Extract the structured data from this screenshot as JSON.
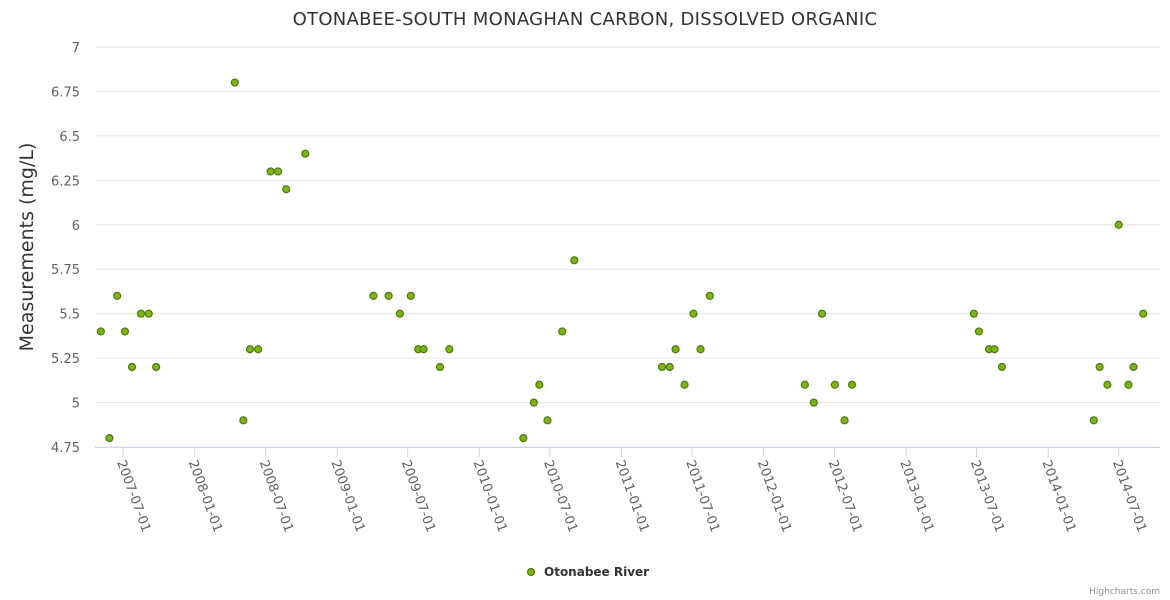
{
  "chart_data": {
    "type": "scatter",
    "title": "OTONABEE-SOUTH MONAGHAN CARBON, DISSOLVED ORGANIC",
    "ylabel": "Measurements (mg/L)",
    "xlabel": "",
    "ylim": [
      4.75,
      7
    ],
    "y_ticks": [
      "4.75",
      "5",
      "5.25",
      "5.5",
      "5.75",
      "6",
      "6.25",
      "6.5",
      "6.75",
      "7"
    ],
    "x_range": [
      "2007-04-20",
      "2014-10-15"
    ],
    "x_ticks": [
      "2007-07-01",
      "2008-01-01",
      "2008-07-01",
      "2009-01-01",
      "2009-07-01",
      "2010-01-01",
      "2010-07-01",
      "2011-01-01",
      "2011-07-01",
      "2012-01-01",
      "2012-07-01",
      "2013-01-01",
      "2013-07-01",
      "2014-01-01",
      "2014-07-01"
    ],
    "grid": true,
    "legend_position": "bottom-center",
    "series": [
      {
        "name": "Otonabee River",
        "color": "#7cb518",
        "border_color": "#4e7a0b",
        "points": [
          {
            "x": "2007-05-05",
            "y": 5.4
          },
          {
            "x": "2007-05-27",
            "y": 4.8
          },
          {
            "x": "2007-06-16",
            "y": 5.6
          },
          {
            "x": "2007-07-06",
            "y": 5.4
          },
          {
            "x": "2007-07-24",
            "y": 5.2
          },
          {
            "x": "2007-08-16",
            "y": 5.5
          },
          {
            "x": "2007-09-05",
            "y": 5.5
          },
          {
            "x": "2007-09-24",
            "y": 5.2
          },
          {
            "x": "2008-04-13",
            "y": 6.8
          },
          {
            "x": "2008-05-05",
            "y": 4.9
          },
          {
            "x": "2008-05-22",
            "y": 5.3
          },
          {
            "x": "2008-06-12",
            "y": 5.3
          },
          {
            "x": "2008-07-14",
            "y": 6.3
          },
          {
            "x": "2008-08-02",
            "y": 6.3
          },
          {
            "x": "2008-08-23",
            "y": 6.2
          },
          {
            "x": "2008-10-11",
            "y": 6.4
          },
          {
            "x": "2009-04-04",
            "y": 5.6
          },
          {
            "x": "2009-05-13",
            "y": 5.6
          },
          {
            "x": "2009-06-11",
            "y": 5.5
          },
          {
            "x": "2009-07-09",
            "y": 5.6
          },
          {
            "x": "2009-07-28",
            "y": 5.3
          },
          {
            "x": "2009-08-11",
            "y": 5.3
          },
          {
            "x": "2009-09-22",
            "y": 5.2
          },
          {
            "x": "2009-10-16",
            "y": 5.3
          },
          {
            "x": "2010-04-24",
            "y": 4.8
          },
          {
            "x": "2010-05-21",
            "y": 5.0
          },
          {
            "x": "2010-06-04",
            "y": 5.1
          },
          {
            "x": "2010-06-25",
            "y": 4.9
          },
          {
            "x": "2010-08-02",
            "y": 5.4
          },
          {
            "x": "2010-09-02",
            "y": 5.8
          },
          {
            "x": "2011-04-15",
            "y": 5.2
          },
          {
            "x": "2011-05-05",
            "y": 5.2
          },
          {
            "x": "2011-05-20",
            "y": 5.3
          },
          {
            "x": "2011-06-12",
            "y": 5.1
          },
          {
            "x": "2011-07-05",
            "y": 5.5
          },
          {
            "x": "2011-07-23",
            "y": 5.3
          },
          {
            "x": "2011-08-16",
            "y": 5.6
          },
          {
            "x": "2012-04-16",
            "y": 5.1
          },
          {
            "x": "2012-05-09",
            "y": 5.0
          },
          {
            "x": "2012-05-30",
            "y": 5.5
          },
          {
            "x": "2012-07-02",
            "y": 5.1
          },
          {
            "x": "2012-07-27",
            "y": 4.9
          },
          {
            "x": "2012-08-15",
            "y": 5.1
          },
          {
            "x": "2013-06-24",
            "y": 5.5
          },
          {
            "x": "2013-07-07",
            "y": 5.4
          },
          {
            "x": "2013-08-02",
            "y": 5.3
          },
          {
            "x": "2013-08-16",
            "y": 5.3
          },
          {
            "x": "2013-09-04",
            "y": 5.2
          },
          {
            "x": "2014-04-28",
            "y": 4.9
          },
          {
            "x": "2014-05-13",
            "y": 5.2
          },
          {
            "x": "2014-06-02",
            "y": 5.1
          },
          {
            "x": "2014-07-01",
            "y": 6.0
          },
          {
            "x": "2014-07-26",
            "y": 5.1
          },
          {
            "x": "2014-08-08",
            "y": 5.2
          },
          {
            "x": "2014-09-02",
            "y": 5.5
          }
        ]
      }
    ]
  },
  "credits": "Highcharts.com"
}
